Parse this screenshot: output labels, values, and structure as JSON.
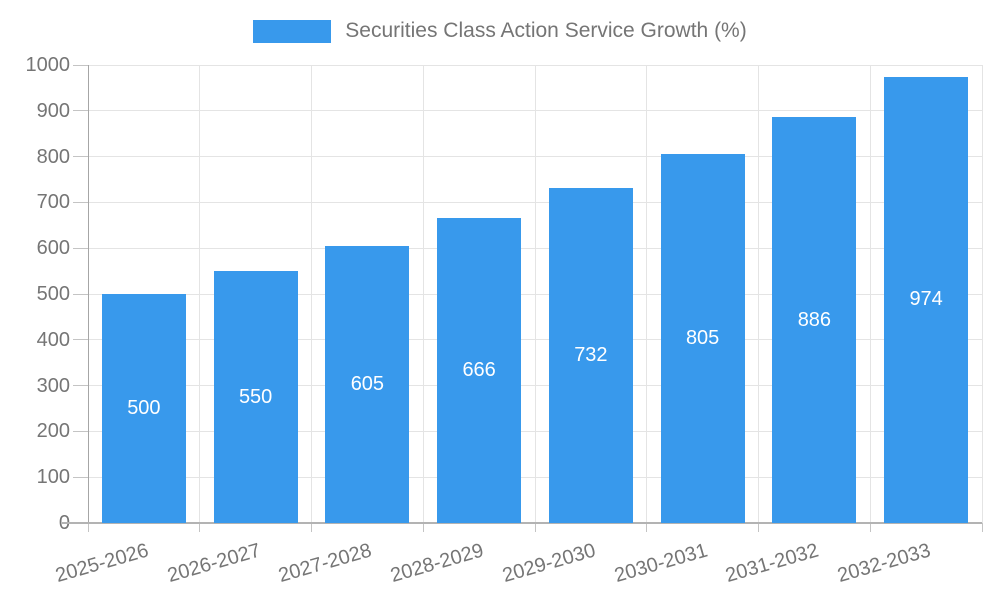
{
  "legend": {
    "label": "Securities Class Action Service Growth (%)"
  },
  "chart_data": {
    "type": "bar",
    "title": "Securities Class Action Service Growth (%)",
    "categories": [
      "2025-2026",
      "2026-2027",
      "2027-2028",
      "2028-2029",
      "2029-2030",
      "2030-2031",
      "2031-2032",
      "2032-2033"
    ],
    "values": [
      500,
      550,
      605,
      666,
      732,
      805,
      886,
      974
    ],
    "xlabel": "",
    "ylabel": "",
    "ylim": [
      0,
      1000
    ],
    "ytick_step": 100,
    "ytick_labels": [
      "0",
      "100",
      "200",
      "300",
      "400",
      "500",
      "600",
      "700",
      "800",
      "900",
      "1000"
    ],
    "grid": true,
    "legend_position": "top",
    "bar_color": "#3899ec",
    "value_label_color": "#ffffff",
    "axis_text_color": "#757575"
  }
}
